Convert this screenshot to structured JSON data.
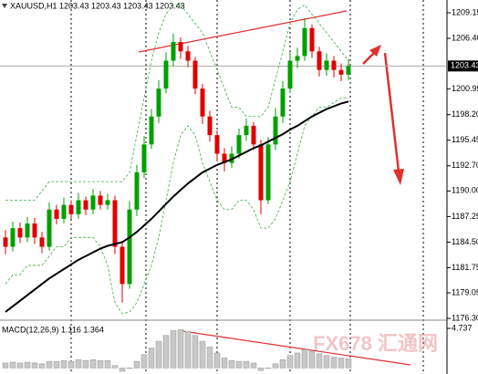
{
  "chart_data": {
    "type": "candlestick",
    "title": "XAUUSD,H1  1203.43 1203.43 1203.43 1203.43",
    "up_color": "#00a000",
    "down_color": "#e00000",
    "open": [
      1185,
      1184,
      1186,
      1185,
      1186.5,
      1185,
      1184,
      1188,
      1187,
      1188.5,
      1187.5,
      1189,
      1188,
      1189.5,
      1188.5,
      1189,
      1184,
      1180,
      1188,
      1192,
      1195,
      1198,
      1201,
      1204,
      1206,
      1205,
      1204,
      1201,
      1198,
      1196,
      1194,
      1193,
      1194,
      1196,
      1197,
      1195,
      1189,
      1195,
      1198,
      1201,
      1204,
      1204.5,
      1207.5,
      1205,
      1203,
      1204,
      1203,
      1202.5
    ],
    "high": [
      1185.8,
      1186.7,
      1186.6,
      1187.2,
      1187.1,
      1185.6,
      1188.8,
      1188.5,
      1189.3,
      1189.0,
      1189.8,
      1189.4,
      1190.2,
      1190.0,
      1189.7,
      1189.5,
      1184.6,
      1188.9,
      1192.8,
      1195.9,
      1198.8,
      1201.9,
      1204.9,
      1206.9,
      1206.5,
      1205.6,
      1204.4,
      1201.5,
      1198.6,
      1196.5,
      1194.6,
      1194.8,
      1196.7,
      1197.8,
      1197.4,
      1195.5,
      1195.8,
      1198.9,
      1201.8,
      1204.9,
      1205.4,
      1208.6,
      1207.9,
      1205.5,
      1204.8,
      1204.5,
      1203.7,
      1204.2
    ],
    "low": [
      1183.2,
      1183.5,
      1184.4,
      1184.5,
      1184.3,
      1183.3,
      1183.6,
      1186.4,
      1186.5,
      1187.0,
      1187.0,
      1187.4,
      1187.5,
      1188.0,
      1188.0,
      1183.2,
      1178.0,
      1179.5,
      1187.3,
      1191.4,
      1194.5,
      1197.3,
      1200.5,
      1203.4,
      1204.2,
      1203.3,
      1200.4,
      1197.2,
      1195.3,
      1193.2,
      1192.1,
      1192.5,
      1193.5,
      1195.4,
      1194.4,
      1187.5,
      1188.6,
      1194.4,
      1197.3,
      1200.5,
      1203.2,
      1204.0,
      1204.3,
      1202.3,
      1202.4,
      1202.2,
      1201.8,
      1201.9
    ],
    "close": [
      1184,
      1186,
      1185,
      1186.5,
      1185,
      1184,
      1188,
      1187,
      1188.5,
      1187.5,
      1189,
      1188,
      1189.5,
      1188.5,
      1189,
      1184,
      1180,
      1188,
      1192,
      1195,
      1198,
      1201,
      1204,
      1206,
      1205,
      1204,
      1201,
      1198,
      1196,
      1194,
      1193,
      1194,
      1196,
      1197,
      1195,
      1189,
      1195,
      1198,
      1201,
      1204,
      1204.5,
      1207.5,
      1205,
      1203,
      1204,
      1203,
      1202.5,
      1203.43
    ],
    "ylim": [
      1176.21,
      1210.52
    ],
    "yticks": [
      {
        "value": 1209.15,
        "label": "1209.15"
      },
      {
        "value": 1206.4,
        "label": "1206.40"
      },
      {
        "value": 1200.95,
        "label": "1200.95"
      },
      {
        "value": 1198.2,
        "label": "1198.20"
      },
      {
        "value": 1195.45,
        "label": "1195.45"
      },
      {
        "value": 1192.7,
        "label": "1192.70"
      },
      {
        "value": 1190,
        "label": "1190.00"
      },
      {
        "value": 1187.25,
        "label": "1187.25"
      },
      {
        "value": 1184.5,
        "label": "1184.50"
      },
      {
        "value": 1181.75,
        "label": "1181.75"
      },
      {
        "value": 1179.05,
        "label": "1179.05"
      },
      {
        "value": 1176.3,
        "label": "1176.30"
      }
    ],
    "current_price": 1203.43,
    "ma": {
      "color": "#000000",
      "values": [
        1177.0,
        1177.6,
        1178.2,
        1178.8,
        1179.4,
        1180.0,
        1180.6,
        1181.1,
        1181.6,
        1182.1,
        1182.6,
        1183.0,
        1183.4,
        1183.8,
        1184.1,
        1184.3,
        1184.5,
        1185.0,
        1185.6,
        1186.3,
        1187.0,
        1187.8,
        1188.6,
        1189.4,
        1190.1,
        1190.8,
        1191.4,
        1192.0,
        1192.4,
        1192.8,
        1193.1,
        1193.4,
        1193.8,
        1194.2,
        1194.6,
        1194.9,
        1195.3,
        1195.7,
        1196.1,
        1196.6,
        1197.0,
        1197.5,
        1198.0,
        1198.4,
        1198.8,
        1199.1,
        1199.4,
        1199.6
      ]
    },
    "bands": {
      "color": "#3cb043",
      "upper": [
        1189,
        1189,
        1189,
        1189,
        1189,
        1190,
        1191,
        1191,
        1191,
        1191,
        1191,
        1191,
        1191,
        1191,
        1191,
        1191,
        1191,
        1192,
        1196,
        1200,
        1204,
        1207,
        1209,
        1210,
        1210,
        1209,
        1208,
        1207,
        1205,
        1203,
        1201,
        1199,
        1199,
        1198,
        1198,
        1198,
        1199,
        1202,
        1205,
        1208,
        1209.5,
        1210,
        1209,
        1208,
        1207,
        1206,
        1205,
        1204
      ],
      "lower": [
        1180,
        1181,
        1181,
        1182,
        1182,
        1182,
        1183,
        1184,
        1184,
        1185,
        1185,
        1185,
        1185,
        1184,
        1182,
        1178,
        1176.8,
        1177,
        1178,
        1180,
        1182,
        1185,
        1189,
        1193,
        1196,
        1197,
        1196,
        1193,
        1191,
        1189,
        1188,
        1188,
        1189,
        1189,
        1188,
        1186,
        1186,
        1187,
        1189,
        1191,
        1194,
        1197,
        1198,
        1199,
        1199,
        1199.5,
        1200,
        1200
      ]
    },
    "macd": {
      "label": "MACD(12,26,9) 1.116 1.364",
      "color": "#c8c8c8",
      "ylim": [
        -0.5,
        4.737
      ],
      "yticks": [
        4.737
      ],
      "values": [
        0.6,
        0.7,
        0.6,
        0.7,
        0.6,
        0.5,
        0.8,
        0.8,
        0.9,
        0.8,
        1.0,
        0.9,
        1.0,
        0.9,
        0.9,
        0.3,
        -0.4,
        0.0,
        0.8,
        1.6,
        2.4,
        3.2,
        3.9,
        4.5,
        4.6,
        4.4,
        3.9,
        3.2,
        2.5,
        1.8,
        1.2,
        0.9,
        0.8,
        0.8,
        0.6,
        -0.3,
        0.0,
        0.5,
        1.0,
        1.5,
        1.8,
        2.2,
        2.0,
        1.7,
        1.5,
        1.3,
        1.2,
        1.1
      ]
    },
    "watermark": "FX678 汇通网"
  }
}
